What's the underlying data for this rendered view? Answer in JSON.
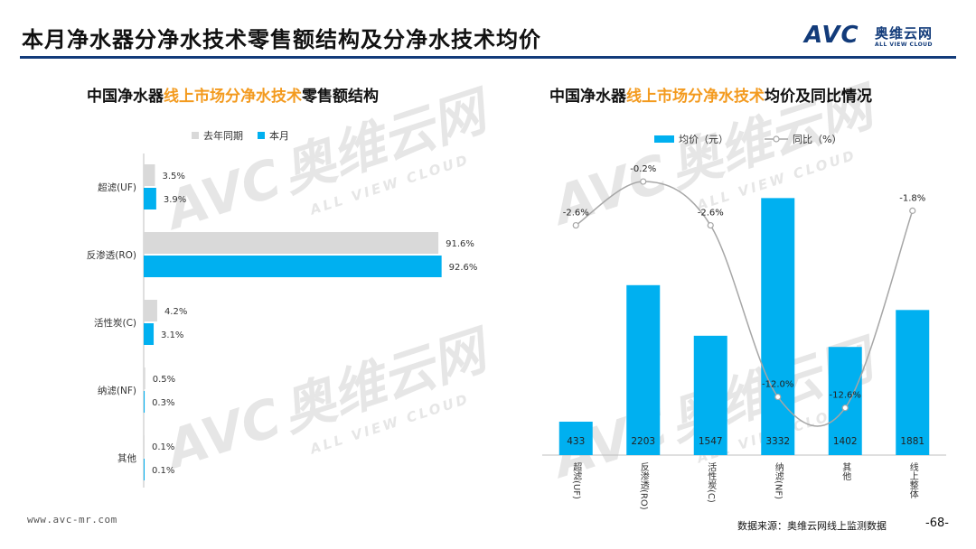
{
  "header": {
    "title": "本月净水器分净水技术零售额结构及分净水技术均价",
    "logo_mark": "AVC",
    "logo_cn": "奥维云网",
    "logo_en": "ALL VIEW CLOUD",
    "brand_color": "#123b7a"
  },
  "watermark": {
    "mark": "AVC",
    "cn": "奥维云网",
    "en": "ALL VIEW CLOUD"
  },
  "left_chart": {
    "title_pre": "中国净水器",
    "title_hl": "线上市场分净水技术",
    "title_post": "零售额结构"
  },
  "right_chart": {
    "title_pre": "中国净水器",
    "title_hl": "线上市场分净水技术",
    "title_post": "均价及同比情况"
  },
  "chart_data": [
    {
      "type": "bar",
      "orientation": "horizontal",
      "categories": [
        "超滤(UF)",
        "反渗透(RO)",
        "活性炭(C)",
        "纳滤(NF)",
        "其他"
      ],
      "series": [
        {
          "name": "去年同期",
          "values": [
            3.5,
            91.6,
            4.2,
            0.5,
            0.1
          ],
          "color": "#d9d9d9"
        },
        {
          "name": "本月",
          "values": [
            3.9,
            92.6,
            3.1,
            0.3,
            0.1
          ],
          "color": "#00b0f0"
        }
      ],
      "value_labels": [
        [
          "3.5%",
          "91.6%",
          "4.2%",
          "0.5%",
          "0.1%"
        ],
        [
          "3.9%",
          "92.6%",
          "3.1%",
          "0.3%",
          "0.1%"
        ]
      ],
      "xlim": [
        0,
        100
      ],
      "legend_position": "top-left"
    },
    {
      "type": "bar",
      "categories": [
        "超滤(UF)",
        "反渗透(RO)",
        "活性炭(C)",
        "纳滤(NF)",
        "其他",
        "线上整体"
      ],
      "series": [
        {
          "name": "均价（元）",
          "type": "bar",
          "values": [
            433,
            2203,
            1547,
            3332,
            1402,
            1881
          ],
          "color": "#00b0f0"
        },
        {
          "name": "同比（%）",
          "type": "line",
          "values": [
            -2.6,
            -0.2,
            -2.6,
            -12.0,
            -12.6,
            -1.8
          ],
          "color": "#a6a6a6"
        }
      ],
      "line_labels": [
        "-2.6%",
        "-0.2%",
        "-2.6%",
        "-12.0%",
        "-12.6%",
        "-1.8%"
      ],
      "ylim": [
        0,
        3500
      ],
      "y2lim": [
        -14,
        0
      ],
      "legend_position": "top-center"
    }
  ],
  "footer": {
    "url": "www.avc-mr.com",
    "source": "数据来源：奥维云网线上监测数据",
    "page": "-68-"
  }
}
